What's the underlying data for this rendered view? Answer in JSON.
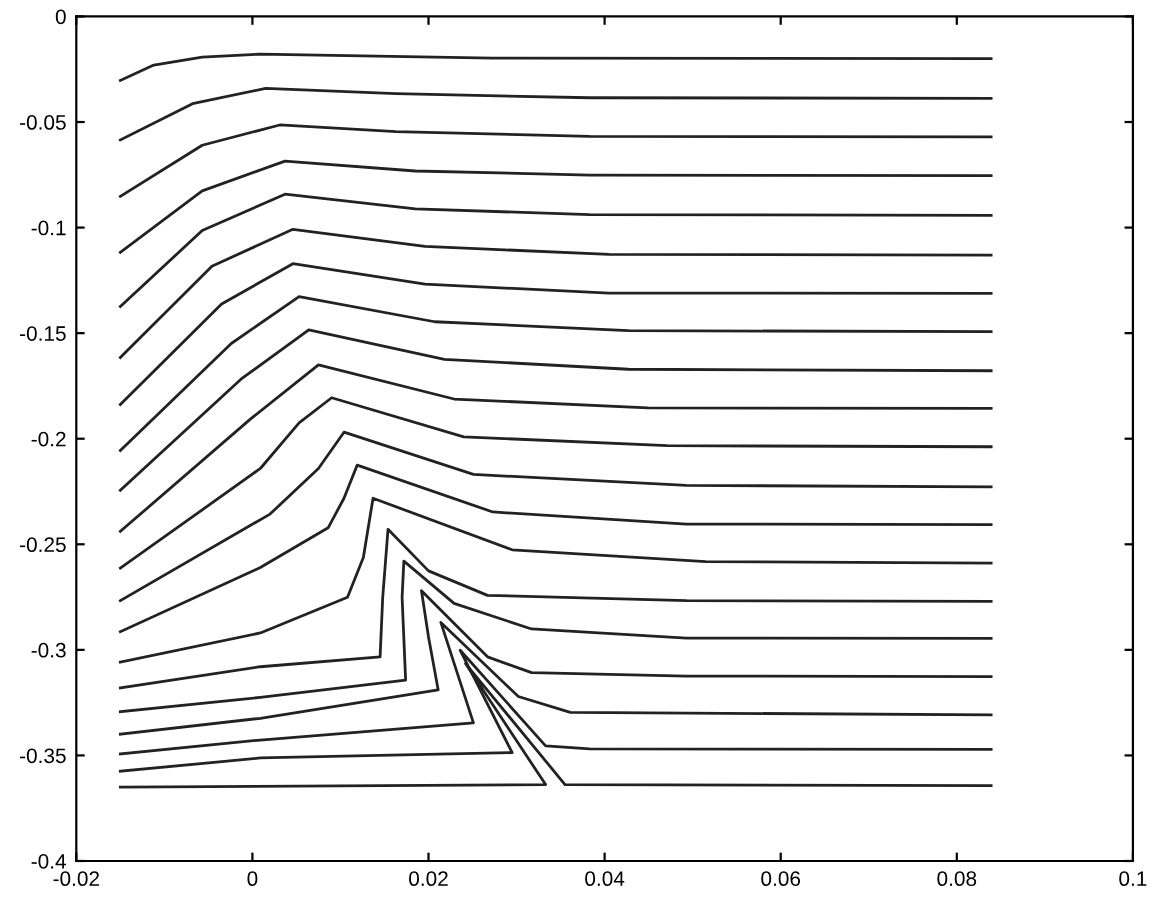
{
  "chart_data": {
    "type": "line",
    "xlim": [
      -0.02,
      0.1
    ],
    "ylim": [
      -0.4,
      0
    ],
    "xticks": [
      {
        "value": -0.02,
        "label": "-0.02"
      },
      0,
      {
        "value": 0.02,
        "label": "0.02"
      },
      {
        "value": 0.04,
        "label": "0.04"
      },
      {
        "value": 0.06,
        "label": "0.06"
      },
      {
        "value": 0.08,
        "label": "0.08"
      },
      {
        "value": 0.1,
        "label": "0.1"
      }
    ],
    "yticks": [
      {
        "value": -0.4,
        "label": "-0.4"
      },
      {
        "value": -0.35,
        "label": "-0.35"
      },
      {
        "value": -0.3,
        "label": "-0.3"
      },
      {
        "value": -0.25,
        "label": "-0.25"
      },
      {
        "value": -0.2,
        "label": "-0.2"
      },
      {
        "value": -0.15,
        "label": "-0.15"
      },
      {
        "value": -0.1,
        "label": "-0.1"
      },
      {
        "value": -0.05,
        "label": "-0.05"
      },
      0
    ],
    "marker": "none",
    "line_style": "solid",
    "series": [
      {
        "color": "#222222",
        "x": [
          -0.015,
          -0.0112,
          -0.0057,
          0.0009,
          0.0273,
          0.0839
        ],
        "values": [
          -0.0303,
          -0.023,
          -0.0193,
          -0.0178,
          -0.0197,
          -0.02
        ]
      },
      {
        "color": "#222222",
        "x": [
          -0.015,
          -0.0068,
          0.0015,
          0.0163,
          0.0383,
          0.0839
        ],
        "values": [
          -0.0585,
          -0.0413,
          -0.0341,
          -0.0366,
          -0.0385,
          -0.0388
        ]
      },
      {
        "color": "#222222",
        "x": [
          -0.015,
          -0.0057,
          0.0031,
          0.0163,
          0.0383,
          0.0839
        ],
        "values": [
          -0.0852,
          -0.061,
          -0.0514,
          -0.0545,
          -0.0568,
          -0.057
        ]
      },
      {
        "color": "#222222",
        "x": [
          -0.015,
          -0.0057,
          0.0037,
          0.0185,
          0.0383,
          0.0839
        ],
        "values": [
          -0.1117,
          -0.0826,
          -0.0685,
          -0.0732,
          -0.0751,
          -0.0754
        ]
      },
      {
        "color": "#222222",
        "x": [
          -0.015,
          -0.0057,
          0.0037,
          0.0185,
          0.0383,
          0.0839
        ],
        "values": [
          -0.1374,
          -0.1014,
          -0.0842,
          -0.0911,
          -0.0939,
          -0.0942
        ]
      },
      {
        "color": "#222222",
        "x": [
          -0.015,
          -0.0046,
          0.0046,
          0.0196,
          0.0405,
          0.0839
        ],
        "values": [
          -0.1615,
          -0.1183,
          -0.1008,
          -0.1089,
          -0.1127,
          -0.113
        ]
      },
      {
        "color": "#222222",
        "x": [
          -0.015,
          -0.0035,
          0.0046,
          0.0196,
          0.0405,
          0.0839
        ],
        "values": [
          -0.1838,
          -0.1362,
          -0.1171,
          -0.1268,
          -0.131,
          -0.1312
        ]
      },
      {
        "color": "#222222",
        "x": [
          -0.015,
          -0.0024,
          0.0053,
          0.0207,
          0.0427,
          0.0839
        ],
        "values": [
          -0.2056,
          -0.1549,
          -0.1327,
          -0.1446,
          -0.1488,
          -0.1493
        ]
      },
      {
        "color": "#222222",
        "x": [
          -0.015,
          -0.0013,
          0.0064,
          0.0218,
          0.0427,
          0.0839
        ],
        "values": [
          -0.2244,
          -0.1718,
          -0.1484,
          -0.1624,
          -0.1671,
          -0.1678
        ]
      },
      {
        "color": "#222222",
        "x": [
          -0.015,
          -0.0002,
          0.0075,
          0.0229,
          0.0449,
          0.0839
        ],
        "values": [
          -0.2439,
          -0.1906,
          -0.165,
          -0.1812,
          -0.1854,
          -0.1856
        ]
      },
      {
        "color": "#222222",
        "x": [
          -0.015,
          0.0009,
          0.0053,
          0.009,
          0.024,
          0.0471,
          0.0839
        ],
        "values": [
          -0.2613,
          -0.2141,
          -0.1925,
          -0.1806,
          -0.1991,
          -0.2033,
          -0.2038
        ]
      },
      {
        "color": "#222222",
        "x": [
          -0.015,
          0.002,
          0.0075,
          0.0104,
          0.0251,
          0.0493,
          0.0839
        ],
        "values": [
          -0.2767,
          -0.2357,
          -0.2141,
          -0.1969,
          -0.2169,
          -0.2221,
          -0.2228
        ]
      },
      {
        "color": "#222222",
        "x": [
          -0.015,
          0.0009,
          0.0086,
          0.0104,
          0.0119,
          0.0273,
          0.0493,
          0.0839
        ],
        "values": [
          -0.2914,
          -0.261,
          -0.2422,
          -0.2282,
          -0.2125,
          -0.2347,
          -0.2404,
          -0.2407
        ]
      },
      {
        "color": "#222222",
        "x": [
          -0.015,
          0.0009,
          0.0108,
          0.0126,
          0.0137,
          0.0295,
          0.0515,
          0.0839
        ],
        "values": [
          -0.3058,
          -0.292,
          -0.2751,
          -0.2563,
          -0.2282,
          -0.2526,
          -0.2582,
          -0.2589
        ]
      },
      {
        "color": "#222222",
        "x": [
          -0.015,
          0.0009,
          0.0145,
          0.0148,
          0.0154,
          0.02,
          0.0267,
          0.0493,
          0.0839
        ],
        "values": [
          -0.318,
          -0.308,
          -0.3033,
          -0.2751,
          -0.2429,
          -0.2626,
          -0.2742,
          -0.2767,
          -0.277
        ]
      },
      {
        "color": "#222222",
        "x": [
          -0.015,
          0.0009,
          0.0174,
          0.017,
          0.0172,
          0.0229,
          0.0317,
          0.0493,
          0.0839
        ],
        "values": [
          -0.3293,
          -0.3225,
          -0.3143,
          -0.2751,
          -0.258,
          -0.278,
          -0.2901,
          -0.2944,
          -0.2946
        ]
      },
      {
        "color": "#222222",
        "x": [
          -0.015,
          0.0009,
          0.0211,
          0.02,
          0.0192,
          0.0267,
          0.0317,
          0.0493,
          0.0839
        ],
        "values": [
          -0.3399,
          -0.3324,
          -0.319,
          -0.2939,
          -0.272,
          -0.3033,
          -0.3108,
          -0.3124,
          -0.3127
        ]
      },
      {
        "color": "#222222",
        "x": [
          -0.015,
          0.0009,
          0.0251,
          0.0214,
          0.0302,
          0.0361,
          0.0839
        ],
        "values": [
          -0.3493,
          -0.3427,
          -0.3346,
          -0.287,
          -0.3221,
          -0.3296,
          -0.3308
        ]
      },
      {
        "color": "#222222",
        "x": [
          -0.015,
          0.0009,
          0.0295,
          0.0236,
          0.0333,
          0.0383,
          0.0839
        ],
        "values": [
          -0.3575,
          -0.3512,
          -0.3487,
          -0.3002,
          -0.3455,
          -0.3469,
          -0.3471
        ]
      },
      {
        "color": "#222222",
        "x": [
          -0.015,
          0.0333,
          0.0242,
          0.0355,
          0.0839
        ],
        "values": [
          -0.365,
          -0.3638,
          -0.3065,
          -0.3638,
          -0.3643
        ]
      }
    ]
  }
}
